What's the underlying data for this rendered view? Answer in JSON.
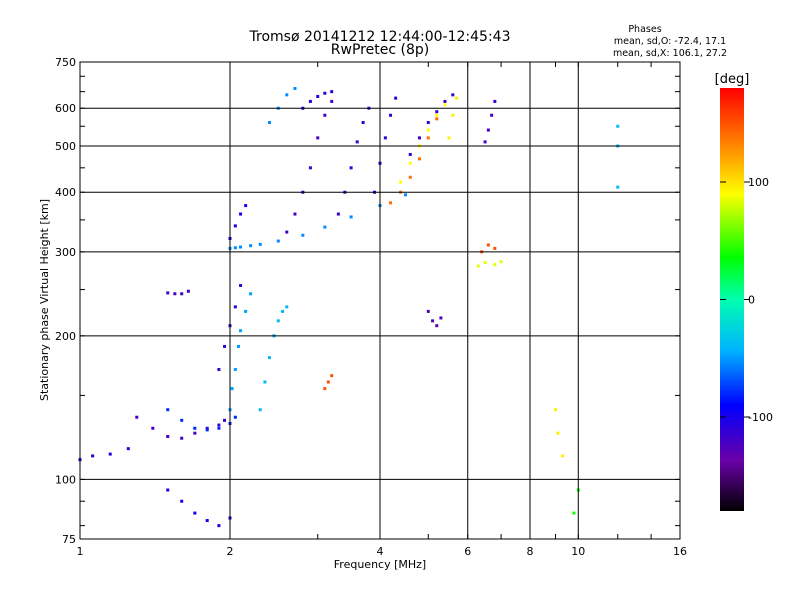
{
  "chart_data": {
    "type": "scatter",
    "title": "Tromsø 20141212 12:44:00-12:45:43",
    "subtitle": "RwPretec (8p)",
    "xlabel": "Frequency [MHz]",
    "ylabel": "Stationary phase Virtual Height [km]",
    "x_scale": "log",
    "y_scale": "log",
    "xlim": [
      1,
      16
    ],
    "ylim": [
      75,
      750
    ],
    "x_ticks": [
      {
        "value": 1,
        "label": "1"
      },
      {
        "value": 2,
        "label": "2"
      },
      {
        "value": 4,
        "label": "4"
      },
      {
        "value": 6,
        "label": "6"
      },
      {
        "value": 8,
        "label": "8"
      },
      {
        "value": 10,
        "label": "10"
      },
      {
        "value": 16,
        "label": "16"
      }
    ],
    "y_ticks": [
      {
        "value": 75,
        "label": "75"
      },
      {
        "value": 100,
        "label": "100"
      },
      {
        "value": 200,
        "label": "200"
      },
      {
        "value": 300,
        "label": "300"
      },
      {
        "value": 400,
        "label": "400"
      },
      {
        "value": 500,
        "label": "500"
      },
      {
        "value": 600,
        "label": "600"
      },
      {
        "value": 750,
        "label": "750"
      }
    ],
    "x_gridlines": [
      2,
      4,
      6,
      8,
      10
    ],
    "y_gridlines": [
      100,
      200,
      300,
      400,
      500,
      600
    ],
    "grid": true,
    "stats": {
      "heading": "Phases",
      "line_o": "mean, sd,O: -72.4, 17.1",
      "line_x": "mean, sd,X: 106.1, 27.2"
    },
    "colorbar": {
      "label": "[deg]",
      "min": -180,
      "max": 180,
      "placement": "right",
      "ticks": [
        {
          "value": 100,
          "label": "100"
        },
        {
          "value": 0,
          "label": "0"
        },
        {
          "value": -100,
          "label": "-100"
        }
      ]
    },
    "color_value": "phase [deg]",
    "series": [
      {
        "x": [
          1.0,
          1.06,
          1.15,
          1.25
        ],
        "y": [
          110,
          112,
          113,
          116
        ],
        "phase": -110
      },
      {
        "x": [
          1.3,
          1.4,
          1.5,
          1.6,
          1.7,
          1.8,
          1.9,
          1.95
        ],
        "y": [
          135,
          128,
          123,
          122,
          125,
          128,
          130,
          133
        ],
        "phase": -120
      },
      {
        "x": [
          1.5,
          1.6,
          1.7,
          1.8,
          1.9,
          2.0,
          2.05
        ],
        "y": [
          140,
          133,
          128,
          127,
          128,
          131,
          135
        ],
        "phase": -80
      },
      {
        "x": [
          2.0,
          2.02,
          2.05,
          2.08,
          2.1,
          2.15,
          2.2
        ],
        "y": [
          140,
          155,
          170,
          190,
          205,
          225,
          245
        ],
        "phase": -50
      },
      {
        "x": [
          1.9,
          1.95,
          2.0,
          2.05,
          2.1
        ],
        "y": [
          170,
          190,
          210,
          230,
          255
        ],
        "phase": -115
      },
      {
        "x": [
          2.3,
          2.35,
          2.4,
          2.45,
          2.5,
          2.55,
          2.6
        ],
        "y": [
          140,
          160,
          180,
          200,
          215,
          225,
          230
        ],
        "phase": -40
      },
      {
        "x": [
          1.5,
          1.55,
          1.6,
          1.65
        ],
        "y": [
          246,
          245,
          245,
          248
        ],
        "phase": -120
      },
      {
        "x": [
          2.0,
          2.05,
          2.1,
          2.2,
          2.3,
          2.5,
          2.8,
          3.1,
          3.5,
          4.0,
          4.5
        ],
        "y": [
          305,
          306,
          307,
          309,
          311,
          316,
          325,
          338,
          355,
          375,
          395
        ],
        "phase": -55
      },
      {
        "x": [
          2.0,
          2.05,
          2.1,
          2.15
        ],
        "y": [
          320,
          340,
          360,
          375
        ],
        "phase": -100
      },
      {
        "x": [
          2.6,
          2.7,
          2.8,
          2.9,
          3.0,
          3.1,
          3.2
        ],
        "y": [
          330,
          360,
          400,
          450,
          520,
          580,
          620
        ],
        "phase": -120
      },
      {
        "x": [
          3.3,
          3.4,
          3.5,
          3.6,
          3.7,
          3.8
        ],
        "y": [
          360,
          400,
          450,
          510,
          560,
          600
        ],
        "phase": -115
      },
      {
        "x": [
          3.9,
          4.0,
          4.1,
          4.2,
          4.3
        ],
        "y": [
          400,
          460,
          520,
          580,
          630
        ],
        "phase": -110
      },
      {
        "x": [
          2.4,
          2.5,
          2.6,
          2.7
        ],
        "y": [
          560,
          600,
          640,
          660
        ],
        "phase": -55
      },
      {
        "x": [
          2.8,
          2.9,
          3.0,
          3.1,
          3.2
        ],
        "y": [
          600,
          620,
          635,
          645,
          650
        ],
        "phase": -105
      },
      {
        "x": [
          4.2,
          4.4,
          4.6,
          4.8,
          5.0,
          5.2
        ],
        "y": [
          380,
          400,
          430,
          470,
          520,
          570
        ],
        "phase": 140
      },
      {
        "x": [
          4.4,
          4.6,
          4.8,
          5.0,
          5.2,
          5.4
        ],
        "y": [
          420,
          460,
          500,
          540,
          580,
          610
        ],
        "phase": 90
      },
      {
        "x": [
          4.6,
          4.8,
          5.0,
          5.2,
          5.4,
          5.6
        ],
        "y": [
          480,
          520,
          560,
          590,
          620,
          640
        ],
        "phase": -115
      },
      {
        "x": [
          5.5,
          5.6,
          5.7
        ],
        "y": [
          520,
          580,
          630
        ],
        "phase": 95
      },
      {
        "x": [
          6.5,
          6.6,
          6.7,
          6.8
        ],
        "y": [
          510,
          540,
          580,
          620
        ],
        "phase": -120
      },
      {
        "x": [
          6.3,
          6.5,
          6.8,
          7.0
        ],
        "y": [
          280,
          285,
          282,
          286
        ],
        "phase": 85
      },
      {
        "x": [
          6.4,
          6.6,
          6.8
        ],
        "y": [
          300,
          310,
          305
        ],
        "phase": 150
      },
      {
        "x": [
          3.1,
          3.15,
          3.2
        ],
        "y": [
          155,
          160,
          165
        ],
        "phase": 150
      },
      {
        "x": [
          5.0,
          5.1,
          5.2,
          5.3
        ],
        "y": [
          225,
          215,
          210,
          218
        ],
        "phase": -130
      },
      {
        "x": [
          1.5,
          1.6,
          1.7,
          1.8,
          1.9,
          2.0
        ],
        "y": [
          95,
          90,
          85,
          82,
          80,
          83
        ],
        "phase": -100
      },
      {
        "x": [
          9.0,
          9.1,
          9.3
        ],
        "y": [
          140,
          125,
          112
        ],
        "phase": 95
      },
      {
        "x": [
          12.0,
          12.0,
          12.0
        ],
        "y": [
          550,
          500,
          410
        ],
        "phase": -40
      },
      {
        "x": [
          10.0,
          9.8
        ],
        "y": [
          95,
          85
        ],
        "phase": 40
      }
    ]
  }
}
